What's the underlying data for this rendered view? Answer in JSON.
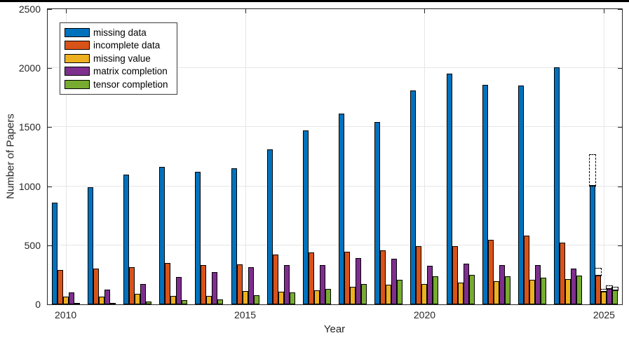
{
  "chart_data": {
    "type": "bar",
    "title": "",
    "xlabel": "Year",
    "ylabel": "Number of Papers",
    "categories": [
      2010,
      2011,
      2012,
      2013,
      2014,
      2015,
      2016,
      2017,
      2018,
      2019,
      2020,
      2021,
      2022,
      2023,
      2024,
      2025
    ],
    "series": [
      {
        "name": "missing data",
        "color": "#0072BD",
        "values": [
          860,
          990,
          1100,
          1165,
          1120,
          1150,
          1315,
          1475,
          1615,
          1545,
          1810,
          1955,
          1860,
          1850,
          2005,
          1010
        ]
      },
      {
        "name": "incomplete data",
        "color": "#D95319",
        "values": [
          290,
          300,
          315,
          350,
          335,
          340,
          420,
          440,
          445,
          460,
          490,
          495,
          545,
          580,
          525,
          250
        ]
      },
      {
        "name": "missing value",
        "color": "#EDB120",
        "values": [
          65,
          65,
          90,
          70,
          70,
          110,
          105,
          120,
          150,
          165,
          170,
          185,
          195,
          210,
          215,
          110
        ]
      },
      {
        "name": "matrix completion",
        "color": "#7E2F8E",
        "values": [
          100,
          125,
          175,
          230,
          275,
          315,
          330,
          335,
          390,
          385,
          325,
          345,
          330,
          335,
          305,
          135
        ]
      },
      {
        "name": "tensor completion",
        "color": "#77AC30",
        "values": [
          10,
          10,
          25,
          35,
          40,
          80,
          100,
          130,
          175,
          205,
          240,
          250,
          235,
          225,
          245,
          125
        ]
      }
    ],
    "projected_2025": {
      "missing data": 1270,
      "incomplete data": 310,
      "missing value": 130,
      "matrix completion": 160,
      "tensor completion": 150
    },
    "projection_line_style": "dash-dot",
    "xlim": [
      2009.5,
      2025.5
    ],
    "ylim": [
      0,
      2500
    ],
    "x_ticks": [
      2010,
      2015,
      2020,
      2025
    ],
    "y_ticks": [
      0,
      500,
      1000,
      1500,
      2000,
      2500
    ],
    "grid": true,
    "legend_position": "northwest",
    "colors": {
      "axis": "#262626",
      "grid": "#e6e6e6",
      "bar_edge": "#000000",
      "background": "#ffffff"
    }
  }
}
